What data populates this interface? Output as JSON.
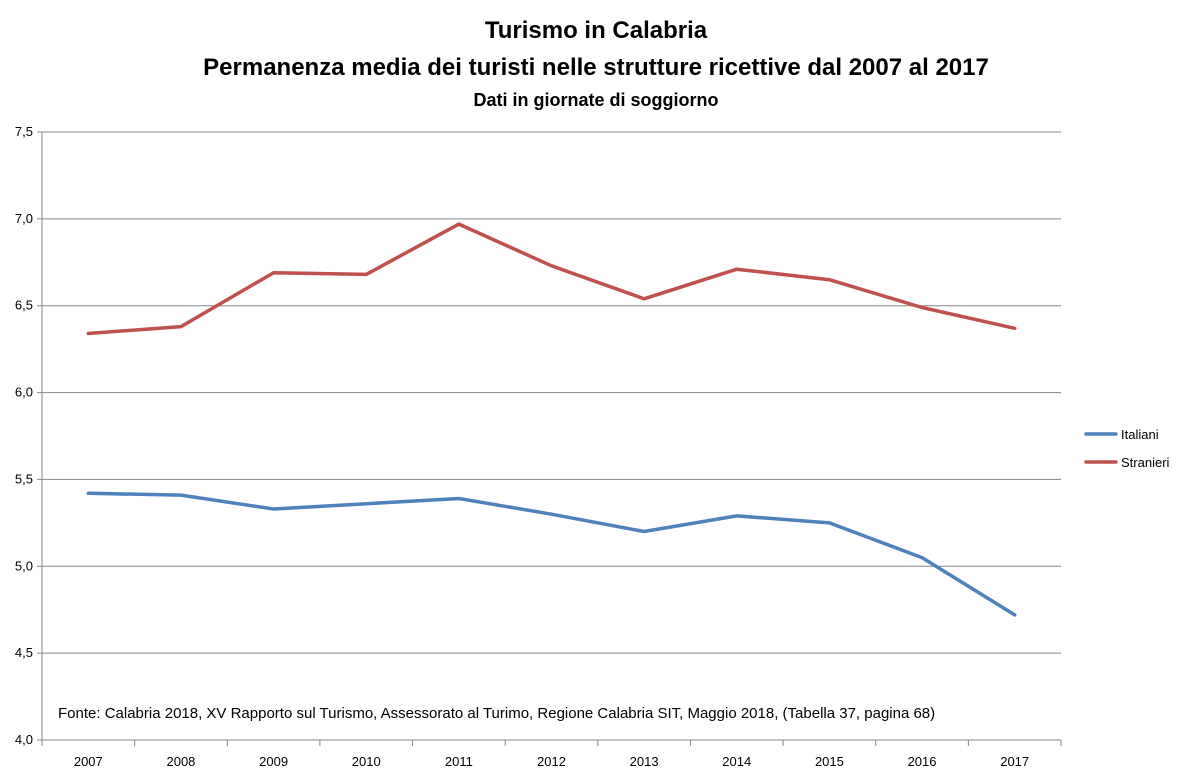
{
  "chart_data": {
    "type": "line",
    "title": "Turismo in Calabria",
    "subtitle": "Permanenza media dei turisti nelle strutture ricettive dal 2007 al 2017",
    "subtitle2": "Dati in giornate di soggiorno",
    "xlabel": "",
    "ylabel": "",
    "categories": [
      "2007",
      "2008",
      "2009",
      "2010",
      "2011",
      "2012",
      "2013",
      "2014",
      "2015",
      "2016",
      "2017"
    ],
    "ylim": [
      4.0,
      7.5
    ],
    "yticks": [
      "4,0",
      "4,5",
      "5,0",
      "5,5",
      "6,0",
      "6,5",
      "7,0",
      "7,5"
    ],
    "grid": true,
    "legend_position": "right",
    "series": [
      {
        "name": "Italiani",
        "color": "#4F81BD",
        "values": [
          5.42,
          5.41,
          5.33,
          5.36,
          5.39,
          5.3,
          5.2,
          5.29,
          5.25,
          5.05,
          4.72
        ]
      },
      {
        "name": "Stranieri",
        "color": "#C0504D",
        "values": [
          6.34,
          6.38,
          6.69,
          6.68,
          6.97,
          6.73,
          6.54,
          6.71,
          6.65,
          6.49,
          6.37
        ]
      }
    ],
    "source_note": "Fonte:  Calabria 2018, XV Rapporto sul Turismo, Assessorato al Turimo, Regione Calabria  SIT, Maggio 2018,  (Tabella  37, pagina 68)"
  }
}
